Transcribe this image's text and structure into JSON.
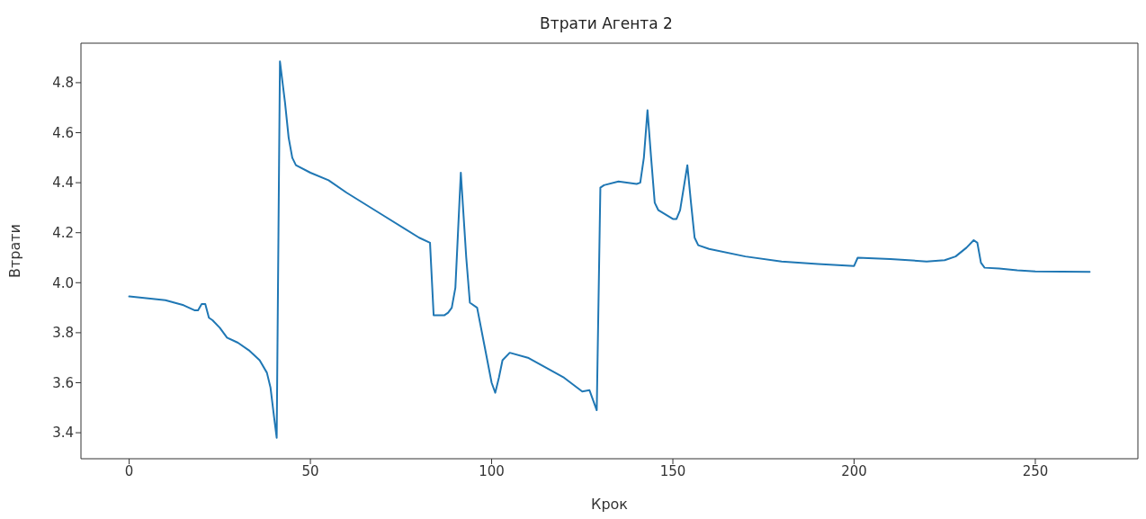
{
  "chart_data": {
    "type": "line",
    "title": "Втрати Агента 2",
    "xlabel": "Крок",
    "ylabel": "Втрати",
    "x": [
      0,
      10,
      15,
      18,
      19,
      20,
      21,
      22,
      23,
      25,
      27,
      30,
      33,
      36,
      38,
      39,
      40,
      40.7,
      41.6,
      43,
      44,
      45,
      46,
      50,
      55,
      60,
      70,
      80,
      83,
      84,
      87,
      88,
      89,
      90,
      91.5,
      93,
      94,
      96,
      98,
      100,
      101,
      102,
      103,
      105,
      110,
      120,
      125,
      127,
      129,
      130,
      131,
      135,
      140,
      141,
      142,
      143,
      144,
      145,
      146,
      150,
      151,
      152,
      154,
      155,
      156,
      157,
      160,
      170,
      180,
      190,
      200,
      201,
      210,
      220,
      225,
      228,
      231,
      233,
      234,
      235,
      236,
      240,
      245,
      250,
      265
    ],
    "series": [
      {
        "color": "#1f77b4",
        "values": [
          3.945,
          3.93,
          3.91,
          3.89,
          3.89,
          3.915,
          3.915,
          3.86,
          3.85,
          3.82,
          3.78,
          3.76,
          3.73,
          3.69,
          3.64,
          3.58,
          3.46,
          3.38,
          4.885,
          4.72,
          4.58,
          4.5,
          4.47,
          4.44,
          4.41,
          4.36,
          4.27,
          4.18,
          4.16,
          3.87,
          3.87,
          3.88,
          3.9,
          3.98,
          4.44,
          4.1,
          3.92,
          3.9,
          3.75,
          3.6,
          3.56,
          3.62,
          3.69,
          3.72,
          3.7,
          3.62,
          3.565,
          3.57,
          3.49,
          4.38,
          4.39,
          4.405,
          4.395,
          4.4,
          4.5,
          4.69,
          4.5,
          4.32,
          4.29,
          4.255,
          4.255,
          4.29,
          4.47,
          4.32,
          4.18,
          4.15,
          4.135,
          4.105,
          4.085,
          4.075,
          4.067,
          4.1,
          4.095,
          4.085,
          4.09,
          4.105,
          4.14,
          4.17,
          4.16,
          4.08,
          4.06,
          4.057,
          4.05,
          4.045,
          4.043
        ]
      }
    ],
    "xlim": [
      -13.3,
      278.3
    ],
    "ylim": [
      3.296,
      4.958
    ],
    "xticks": [
      0,
      50,
      100,
      150,
      200,
      250
    ],
    "yticks": [
      3.4,
      3.6,
      3.8,
      {
        "value": 4,
        "label": "4.0"
      },
      4.2,
      4.4,
      4.6,
      4.8
    ],
    "grid": false,
    "legend": false
  }
}
